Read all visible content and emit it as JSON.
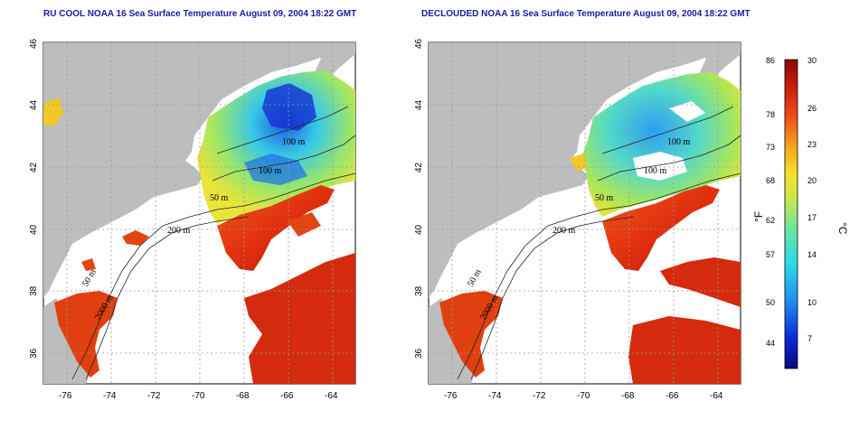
{
  "left_panel": {
    "title": "RU COOL NOAA 16 Sea Surface Temperature August 09, 2004 18:22 GMT",
    "isobath_labels": [
      "100 m",
      "100 m",
      "50 m",
      "200 m",
      "50 m",
      "2000 m"
    ]
  },
  "right_panel": {
    "title": "DECLOUDED NOAA 16 Sea Surface Temperature August 09, 2004 18:22 GMT",
    "isobath_labels": [
      "100 m",
      "100 m",
      "50 m",
      "200 m",
      "50 m",
      "2000 m"
    ]
  },
  "axes": {
    "x_ticks": [
      "-76",
      "-74",
      "-72",
      "-70",
      "-68",
      "-66",
      "-64"
    ],
    "y_ticks": [
      "36",
      "38",
      "40",
      "42",
      "44",
      "46"
    ],
    "x_range": [
      -77.0,
      -63.0
    ],
    "y_range": [
      35.0,
      46.0
    ],
    "grid": "dotted"
  },
  "colorbar": {
    "fahrenheit_label": "°F",
    "celsius_label": "°C",
    "fahrenheit_ticks": [
      "86",
      "78",
      "73",
      "68",
      "62",
      "57",
      "50",
      "44"
    ],
    "celsius_ticks": [
      "30",
      "26",
      "23",
      "20",
      "17",
      "14",
      "10",
      "7"
    ],
    "range_celsius": [
      4,
      30
    ],
    "colors": [
      "#08087a",
      "#0b2bd8",
      "#1f8ff0",
      "#2ed9e6",
      "#6ae6a0",
      "#c8e84a",
      "#f7e22a",
      "#f7a21e",
      "#ef4a16",
      "#c41a0c",
      "#8a0a06"
    ]
  },
  "colors": {
    "land": "#bdbdbd",
    "water_no_data": "#ffffff",
    "title_text": "#1a1aa6"
  }
}
